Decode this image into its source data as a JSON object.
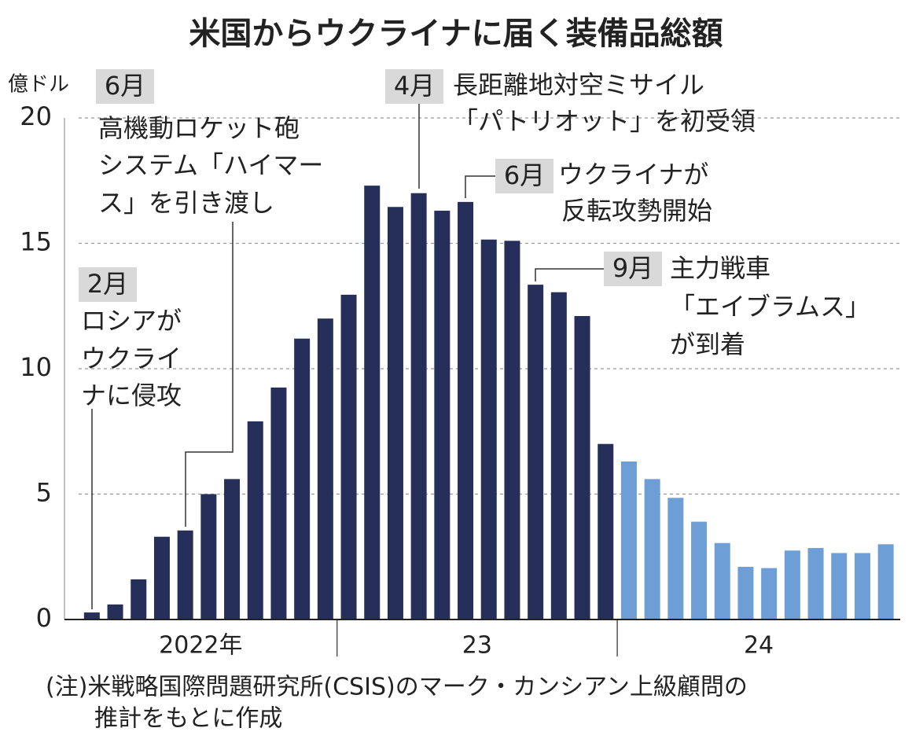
{
  "chart_data": {
    "type": "bar",
    "title": "米国からウクライナに届く装備品総額",
    "y_unit": "億ドル",
    "ylim": [
      0,
      20
    ],
    "yticks": [
      0,
      5,
      10,
      15,
      20
    ],
    "grid": true,
    "series": [
      {
        "name": "2022年",
        "color": "#262f5a",
        "values": [
          0.28,
          0.6,
          1.6,
          3.3,
          3.55,
          5.0,
          5.6,
          7.9,
          9.25,
          11.2,
          12.0
        ]
      },
      {
        "name": "23",
        "color": "#262f5a",
        "values": [
          12.95,
          17.3,
          16.45,
          17.0,
          16.3,
          16.65,
          15.15,
          15.1,
          13.35,
          13.05,
          12.1,
          7.0
        ]
      },
      {
        "name": "24",
        "color": "#6d9fd6",
        "values": [
          6.3,
          5.6,
          4.85,
          3.9,
          3.05,
          2.1,
          2.05,
          2.75,
          2.85,
          2.65,
          2.65,
          3.0
        ]
      }
    ],
    "annotations": [
      {
        "month": "2月",
        "lines": [
          "ロシアが",
          "ウクライ",
          "ナに侵攻"
        ]
      },
      {
        "month": "6月",
        "lines": [
          "高機動ロケット砲",
          "システム「ハイマー",
          "ス」を引き渡し"
        ]
      },
      {
        "month": "4月",
        "lines": [
          "長距離地対空ミサイル",
          "「パトリオット」を初受領"
        ]
      },
      {
        "month": "6月",
        "lines": [
          "ウクライナが",
          "反転攻勢開始"
        ]
      },
      {
        "month": "9月",
        "lines": [
          "主力戦車",
          "「エイブラムス」",
          "が到着"
        ]
      }
    ],
    "note": [
      "(注)米戦略国際問題研究所(CSIS)のマーク・カンシアン上級顧問の",
      "推計をもとに作成"
    ]
  }
}
